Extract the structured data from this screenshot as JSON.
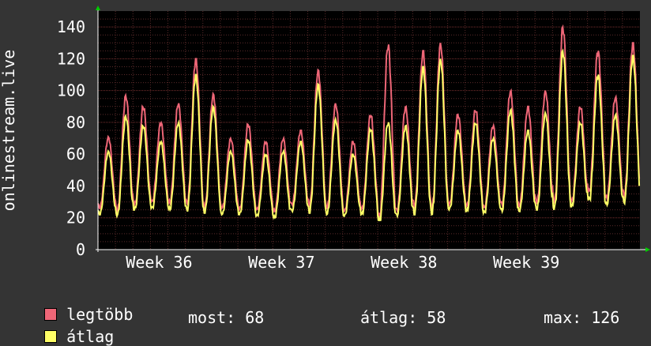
{
  "chart_data": {
    "type": "line",
    "ylabel": "onlinestream.live",
    "ylim": [
      0,
      150
    ],
    "yticks": [
      0,
      20,
      40,
      60,
      80,
      100,
      120,
      140
    ],
    "x_tick_labels": [
      "Week 36",
      "Week 37",
      "Week 38",
      "Week 39"
    ],
    "x_tick_positions_days": [
      3.5,
      10.5,
      17.5,
      24.5
    ],
    "days_span": 31,
    "grid": true,
    "legend_placement": "bottom",
    "colors": {
      "background": "#343434",
      "plot": "#000000",
      "grid": "#5a2a2a",
      "axis": "#ffffff",
      "arrow": "#00cc00",
      "max": "#ee6677",
      "avg": "#ffff66"
    },
    "daily_peaks": {
      "max": [
        71,
        97,
        90,
        80,
        92,
        120,
        98,
        70,
        79,
        68,
        70,
        75,
        113,
        92,
        68,
        85,
        129,
        90,
        125,
        130,
        85,
        88,
        78,
        100,
        90,
        100,
        140,
        90,
        125,
        96,
        130
      ],
      "avg": [
        62,
        84,
        78,
        68,
        80,
        110,
        90,
        62,
        69,
        60,
        62,
        68,
        104,
        82,
        60,
        76,
        80,
        78,
        115,
        120,
        75,
        80,
        70,
        88,
        75,
        86,
        125,
        80,
        110,
        85,
        122
      ]
    },
    "daily_troughs": {
      "max": [
        26,
        24,
        28,
        30,
        29,
        28,
        26,
        26,
        25,
        25,
        24,
        28,
        27,
        26,
        24,
        25,
        20,
        24,
        26,
        25,
        28,
        27,
        26,
        28,
        27,
        29,
        29,
        30,
        36,
        32,
        33
      ],
      "avg": [
        22,
        21,
        25,
        26,
        25,
        24,
        23,
        22,
        22,
        21,
        20,
        24,
        23,
        22,
        21,
        22,
        18,
        21,
        22,
        22,
        25,
        24,
        23,
        24,
        24,
        25,
        25,
        27,
        31,
        28,
        29
      ]
    },
    "series": [
      {
        "name": "legtöbb",
        "color": "#ee6677"
      },
      {
        "name": "átlag",
        "color": "#ffff66"
      }
    ]
  },
  "legend": {
    "max_label": "legtöbb",
    "avg_label": "átlag",
    "most": "most: 68",
    "atlag": "átlag: 58",
    "max": "max: 126"
  }
}
